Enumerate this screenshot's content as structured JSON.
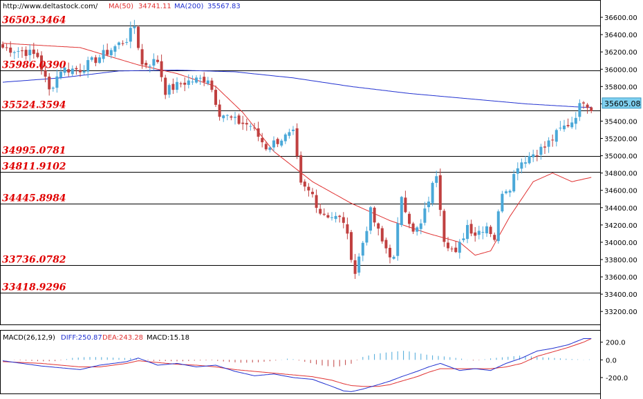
{
  "header": {
    "site": "http://www.deltastock.com/",
    "ma50_label": "MA(50)",
    "ma50_value": "34741.11",
    "ma200_label": "MA(200)",
    "ma200_value": "35567.83"
  },
  "macd_header": {
    "label": "MACD(26,12,9)",
    "diff": "DIFF:250.87",
    "dea": "DEA:243.28",
    "macd": "MACD:15.18"
  },
  "colors": {
    "up": "#4aa8d8",
    "down": "#c04040",
    "ma50": "#e03030",
    "ma200": "#2030d0",
    "level_text": "#e00000",
    "price_tag_bg": "#7fd0f0"
  },
  "levels": [
    {
      "value": 36503.3464,
      "label": "36503.3464"
    },
    {
      "value": 35986.039,
      "label": "35986.0390"
    },
    {
      "value": 35524.3594,
      "label": "35524.3594"
    },
    {
      "value": 34995.0781,
      "label": "34995.0781"
    },
    {
      "value": 34811.9102,
      "label": "34811.9102"
    },
    {
      "value": 34445.8984,
      "label": "34445.8984"
    },
    {
      "value": 33736.0782,
      "label": "33736.0782"
    },
    {
      "value": 33418.9296,
      "label": "33418.9296"
    }
  ],
  "current_price": "35605.08",
  "chart_data": {
    "type": "candlestick",
    "ylim": [
      33050,
      36800
    ],
    "y_ticks": [
      "36600.00",
      "36400.00",
      "36200.00",
      "36000.00",
      "35800.00",
      "35600.00",
      "35400.00",
      "35200.00",
      "35000.00",
      "34800.00",
      "34600.00",
      "34400.00",
      "34200.00",
      "34000.00",
      "33800.00",
      "33600.00",
      "33400.00",
      "33200.00"
    ],
    "close_anchors": [
      [
        0,
        36250
      ],
      [
        6,
        36200
      ],
      [
        9,
        36150
      ],
      [
        12,
        35750
      ],
      [
        15,
        36000
      ],
      [
        20,
        36000
      ],
      [
        27,
        36200
      ],
      [
        32,
        36350
      ],
      [
        34,
        36500
      ],
      [
        36,
        36050
      ],
      [
        40,
        36100
      ],
      [
        42,
        35750
      ],
      [
        47,
        35850
      ],
      [
        53,
        35900
      ],
      [
        56,
        35500
      ],
      [
        60,
        35400
      ],
      [
        64,
        35350
      ],
      [
        68,
        35100
      ],
      [
        72,
        35200
      ],
      [
        75,
        35250
      ],
      [
        77,
        34650
      ],
      [
        80,
        34550
      ],
      [
        82,
        34350
      ],
      [
        88,
        34250
      ],
      [
        91,
        33650
      ],
      [
        95,
        34350
      ],
      [
        98,
        34000
      ],
      [
        101,
        33800
      ],
      [
        103,
        34550
      ],
      [
        106,
        34100
      ],
      [
        108,
        34200
      ],
      [
        112,
        34800
      ],
      [
        114,
        34050
      ],
      [
        117,
        33850
      ],
      [
        120,
        34200
      ],
      [
        122,
        34100
      ],
      [
        125,
        34200
      ],
      [
        127,
        34050
      ],
      [
        129,
        34600
      ],
      [
        131,
        34650
      ],
      [
        133,
        34900
      ],
      [
        136,
        35000
      ],
      [
        140,
        35100
      ],
      [
        144,
        35300
      ],
      [
        147,
        35400
      ],
      [
        150,
        35650
      ],
      [
        152,
        35550
      ]
    ],
    "ma50": [
      [
        0,
        36300
      ],
      [
        20,
        36250
      ],
      [
        35,
        36050
      ],
      [
        45,
        35950
      ],
      [
        55,
        35800
      ],
      [
        62,
        35500
      ],
      [
        70,
        35050
      ],
      [
        80,
        34700
      ],
      [
        90,
        34450
      ],
      [
        100,
        34250
      ],
      [
        110,
        34100
      ],
      [
        118,
        34000
      ],
      [
        122,
        33850
      ],
      [
        126,
        33900
      ],
      [
        131,
        34300
      ],
      [
        137,
        34700
      ],
      [
        142,
        34800
      ],
      [
        147,
        34700
      ],
      [
        152,
        34750
      ]
    ],
    "ma200": [
      [
        0,
        35850
      ],
      [
        15,
        35900
      ],
      [
        30,
        35980
      ],
      [
        45,
        35990
      ],
      [
        60,
        35970
      ],
      [
        75,
        35900
      ],
      [
        90,
        35800
      ],
      [
        105,
        35720
      ],
      [
        120,
        35660
      ],
      [
        135,
        35600
      ],
      [
        150,
        35560
      ],
      [
        152,
        35560
      ]
    ],
    "macd": {
      "ylim": [
        -380,
        330
      ],
      "y_ticks": [
        "200.0",
        "0.0",
        "-200.0"
      ],
      "diff": [
        [
          0,
          -10
        ],
        [
          10,
          -70
        ],
        [
          20,
          -110
        ],
        [
          25,
          -60
        ],
        [
          32,
          -20
        ],
        [
          35,
          20
        ],
        [
          40,
          -60
        ],
        [
          45,
          -40
        ],
        [
          50,
          -80
        ],
        [
          55,
          -60
        ],
        [
          60,
          -130
        ],
        [
          65,
          -180
        ],
        [
          70,
          -160
        ],
        [
          75,
          -200
        ],
        [
          80,
          -220
        ],
        [
          85,
          -300
        ],
        [
          88,
          -350
        ],
        [
          90,
          -360
        ],
        [
          93,
          -330
        ],
        [
          97,
          -280
        ],
        [
          100,
          -240
        ],
        [
          103,
          -190
        ],
        [
          107,
          -130
        ],
        [
          110,
          -80
        ],
        [
          113,
          -40
        ],
        [
          118,
          -120
        ],
        [
          122,
          -100
        ],
        [
          126,
          -120
        ],
        [
          130,
          -40
        ],
        [
          134,
          20
        ],
        [
          138,
          100
        ],
        [
          142,
          130
        ],
        [
          146,
          170
        ],
        [
          150,
          240
        ],
        [
          152,
          240
        ]
      ],
      "dea": [
        [
          0,
          -20
        ],
        [
          10,
          -40
        ],
        [
          20,
          -80
        ],
        [
          25,
          -80
        ],
        [
          32,
          -40
        ],
        [
          35,
          -10
        ],
        [
          40,
          -30
        ],
        [
          45,
          -50
        ],
        [
          50,
          -60
        ],
        [
          55,
          -80
        ],
        [
          60,
          -110
        ],
        [
          65,
          -130
        ],
        [
          70,
          -150
        ],
        [
          75,
          -170
        ],
        [
          80,
          -190
        ],
        [
          85,
          -230
        ],
        [
          88,
          -270
        ],
        [
          90,
          -290
        ],
        [
          93,
          -300
        ],
        [
          97,
          -300
        ],
        [
          100,
          -280
        ],
        [
          103,
          -240
        ],
        [
          107,
          -190
        ],
        [
          110,
          -140
        ],
        [
          113,
          -100
        ],
        [
          118,
          -100
        ],
        [
          122,
          -100
        ],
        [
          126,
          -100
        ],
        [
          130,
          -80
        ],
        [
          134,
          -40
        ],
        [
          138,
          40
        ],
        [
          142,
          90
        ],
        [
          146,
          140
        ],
        [
          150,
          200
        ],
        [
          152,
          240
        ]
      ],
      "hist": [
        [
          0,
          5
        ],
        [
          6,
          -15
        ],
        [
          10,
          -30
        ],
        [
          14,
          -25
        ],
        [
          18,
          40
        ],
        [
          22,
          60
        ],
        [
          26,
          55
        ],
        [
          30,
          40
        ],
        [
          34,
          35
        ],
        [
          38,
          -20
        ],
        [
          42,
          -25
        ],
        [
          46,
          -30
        ],
        [
          50,
          -15
        ],
        [
          54,
          -10
        ],
        [
          58,
          -40
        ],
        [
          62,
          -60
        ],
        [
          66,
          -50
        ],
        [
          70,
          -20
        ],
        [
          74,
          30
        ],
        [
          78,
          -40
        ],
        [
          82,
          -110
        ],
        [
          86,
          -150
        ],
        [
          90,
          -80
        ],
        [
          93,
          60
        ],
        [
          96,
          120
        ],
        [
          100,
          160
        ],
        [
          104,
          190
        ],
        [
          107,
          140
        ],
        [
          110,
          100
        ],
        [
          114,
          70
        ],
        [
          118,
          30
        ],
        [
          122,
          -20
        ],
        [
          126,
          30
        ],
        [
          130,
          60
        ],
        [
          134,
          90
        ],
        [
          138,
          60
        ],
        [
          142,
          40
        ],
        [
          146,
          20
        ],
        [
          150,
          5
        ],
        [
          152,
          10
        ]
      ]
    }
  }
}
